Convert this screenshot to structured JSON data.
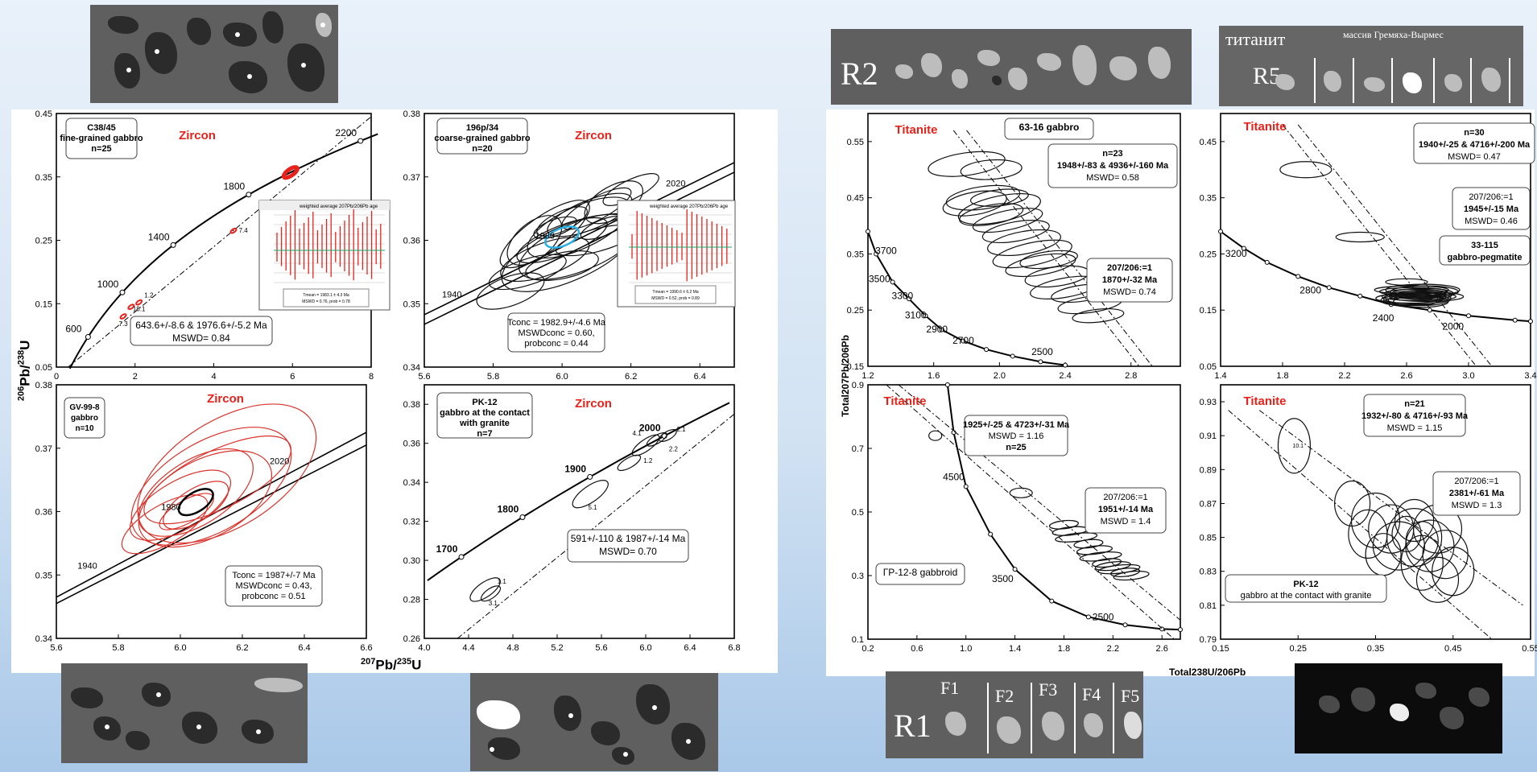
{
  "charts": [
    {
      "id": "A",
      "title": "Zircon",
      "sample": [
        "C38/45",
        "fine-grained gabbro",
        "n=25"
      ],
      "x_ticks": [
        "0",
        "2",
        "4",
        "6",
        "8"
      ],
      "y_ticks": [
        "0.05",
        "0.15",
        "0.25",
        "0.35",
        "0.45"
      ],
      "xlim": [
        0,
        8
      ],
      "ylim": [
        0.05,
        0.45
      ],
      "concordia_ages": [
        "600",
        "1000",
        "1400",
        "1800",
        "2200"
      ],
      "spot_labels": [
        "7.3",
        "1.2",
        "18.1",
        "7.4"
      ],
      "result": [
        "643.6+/-8.6 & 1976.6+/-5.2 Ma",
        "MSWD= 0.84"
      ],
      "inset": {
        "title": "weighted average 207Pb/206Pb age",
        "summary": [
          "Tmean = 1983.1 ± 4.3 Ma",
          "MSWD = 0.76, prob = 0.78"
        ]
      }
    },
    {
      "id": "B",
      "title": "Zircon",
      "sample": [
        "196p/34",
        "coarse-grained gabbro",
        "n=20"
      ],
      "x_ticks": [
        "5.6",
        "5.8",
        "6.0",
        "6.2",
        "6.4"
      ],
      "y_ticks": [
        "0.34",
        "0.35",
        "0.36",
        "0.37",
        "0.38"
      ],
      "xlim": [
        5.6,
        6.5
      ],
      "ylim": [
        0.34,
        0.38
      ],
      "concordia_ages": [
        "1940",
        "1980",
        "2020"
      ],
      "result": [
        "Tconc = 1982.9+/-4.6 Ma",
        "MSWDconc = 0.60,",
        "probconc = 0.44"
      ],
      "inset": {
        "title": "weighted average 207Pb/206Pb age",
        "summary": [
          "Tmean = 1990.6 ± 6.2 Ma",
          "MSWD = 0.52, prob = 0.89"
        ]
      }
    },
    {
      "id": "C",
      "title": "Zircon",
      "sample": [
        "GV-99-8",
        "gabbro",
        "n=10"
      ],
      "x_ticks": [
        "5.6",
        "5.8",
        "6.0",
        "6.2",
        "6.4",
        "6.6"
      ],
      "y_ticks": [
        "0.34",
        "0.35",
        "0.36",
        "0.37",
        "0.38"
      ],
      "xlim": [
        5.6,
        6.6
      ],
      "ylim": [
        0.34,
        0.38
      ],
      "concordia_ages": [
        "1940",
        "1980",
        "2020"
      ],
      "result": [
        "Tconc = 1987+/-7 Ma",
        "MSWDconc = 0.43,",
        "probconc = 0.51"
      ]
    },
    {
      "id": "D",
      "title": "Zircon",
      "sample": [
        "PK-12",
        "gabbro at the contact",
        "with granite",
        "n=7"
      ],
      "x_ticks": [
        "4.0",
        "4.4",
        "4.8",
        "5.2",
        "5.6",
        "6.0",
        "6.4",
        "6.8"
      ],
      "y_ticks": [
        "0.26",
        "0.28",
        "0.30",
        "0.32",
        "0.34",
        "0.36",
        "0.38"
      ],
      "xlim": [
        4.0,
        6.8
      ],
      "ylim": [
        0.26,
        0.39
      ],
      "concordia_ages": [
        "1700",
        "1800",
        "1900",
        "2000"
      ],
      "spot_labels": [
        "4.1",
        "2.1",
        "1.2",
        "2.2",
        "5.1",
        "1.1",
        "3.1"
      ],
      "result": [
        "591+/-110 & 1987+/-14 Ma",
        "MSWD= 0.70"
      ]
    },
    {
      "id": "E",
      "title": "Titanite",
      "sample": [
        "63-16 gabbro"
      ],
      "x_ticks": [
        "1.2",
        "1.6",
        "2.0",
        "2.4",
        "2.8"
      ],
      "y_ticks": [
        "0.15",
        "0.25",
        "0.35",
        "0.45",
        "0.55"
      ],
      "xlim": [
        1.2,
        3.1
      ],
      "ylim": [
        0.15,
        0.6
      ],
      "concordia_ages": [
        "3700",
        "3500",
        "3300",
        "3100",
        "2900",
        "2700",
        "2500"
      ],
      "result": [
        "n=23",
        "1948+/-83 & 4936+/-160 Ma",
        "MSWD= 0.58"
      ],
      "result2": [
        "207/206:=1",
        "1870+/-32 Ma",
        "MSWD= 0.74"
      ]
    },
    {
      "id": "F",
      "title": "Titanite",
      "sample": [
        "33-115",
        "gabbro-pegmatite"
      ],
      "x_ticks": [
        "1.4",
        "1.8",
        "2.2",
        "2.6",
        "3.0",
        "3.4"
      ],
      "y_ticks": [
        "0.05",
        "0.15",
        "0.25",
        "0.35",
        "0.45"
      ],
      "xlim": [
        1.4,
        3.4
      ],
      "ylim": [
        0.05,
        0.5
      ],
      "concordia_ages": [
        "3200",
        "2800",
        "2400",
        "2000"
      ],
      "result": [
        "n=30",
        "1940+/-25 & 4716+/-200 Ma",
        "MSWD= 0.47"
      ],
      "result2": [
        "207/206:=1",
        "1945+/-15 Ma",
        "MSWD= 0.46"
      ]
    },
    {
      "id": "G",
      "title": "Titanite",
      "sample": [
        "ГР-12-8  gabbroid"
      ],
      "x_ticks": [
        "0.2",
        "0.6",
        "1.0",
        "1.4",
        "1.8",
        "2.2",
        "2.6"
      ],
      "y_ticks": [
        "0.1",
        "0.3",
        "0.5",
        "0.7",
        "0.9"
      ],
      "xlim": [
        0.2,
        2.75
      ],
      "ylim": [
        0.1,
        0.9
      ],
      "concordia_ages": [
        "4500",
        "3500",
        "2500"
      ],
      "result": [
        "1925+/-25 & 4723+/-31 Ma",
        "MSWD = 1.16",
        "n=25"
      ],
      "result2": [
        "207/206:=1",
        "1951+/-14 Ma",
        "MSWD = 1.4"
      ]
    },
    {
      "id": "H",
      "title": "Titanite",
      "sample": [
        "PK-12",
        "gabbro at the contact with granite"
      ],
      "x_ticks": [
        "0.15",
        "0.25",
        "0.35",
        "0.45",
        "0.55"
      ],
      "y_ticks": [
        "0.79",
        "0.81",
        "0.83",
        "0.85",
        "0.87",
        "0.89",
        "0.91",
        "0.93"
      ],
      "xlim": [
        0.15,
        0.55
      ],
      "ylim": [
        0.79,
        0.94
      ],
      "spot_labels": [
        "10.1"
      ],
      "result": [
        "n=21",
        "1932+/-80 & 4716+/-93 Ma",
        "MSWD = 1.15"
      ],
      "result2": [
        "207/206:=1",
        "2381+/-61 Ma",
        "MSWD = 1.3"
      ]
    }
  ],
  "axis_labels": {
    "left_y": {
      "main": "Pb/",
      "sup1": "206",
      "sup2": "238",
      "end": "U"
    },
    "left_x": {
      "sup1": "207",
      "main": "Pb/",
      "sup2": "235",
      "end": "U"
    },
    "right_y": "Total207Pb/206Pb",
    "right_x": "Total238U/206Pb"
  },
  "photos": {
    "R2": "R2",
    "R5": "R5",
    "R1": "R1",
    "titanite_ru": "титанит",
    "massif_ru": "массив Гремяха-Вырмес",
    "F_labels": [
      "F1",
      "F2",
      "F3",
      "F4",
      "F5"
    ]
  },
  "colors": {
    "red": "#e8221b",
    "ellipse_red": "#d9312a",
    "black": "#000000",
    "cyan": "#2ab0e6"
  }
}
